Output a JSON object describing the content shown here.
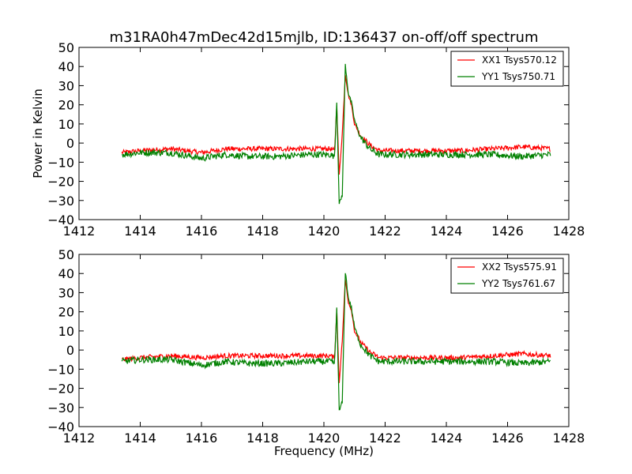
{
  "chart_data": {
    "type": "line",
    "title": "m31RA0h47mDec42d15mjlb, ID:136437 on-off/off spectrum",
    "xlabel": "Frequency (MHz)",
    "ylabel": "Power in Kelvin",
    "xlim": [
      1412,
      1428
    ],
    "ylim": [
      -40,
      50
    ],
    "xticks": [
      1412,
      1414,
      1416,
      1418,
      1420,
      1422,
      1424,
      1426,
      1428
    ],
    "yticks": [
      -40,
      -30,
      -20,
      -10,
      0,
      10,
      20,
      30,
      40,
      50
    ],
    "xtick_labels": [
      "1412",
      "1414",
      "1416",
      "1418",
      "1420",
      "1422",
      "1424",
      "1426",
      "1428"
    ],
    "ytick_labels": [
      "−40",
      "−30",
      "−20",
      "−10",
      "0",
      "10",
      "20",
      "30",
      "40",
      "50"
    ],
    "grid": false,
    "legend_position": "top-right",
    "colors": {
      "red_series": "#ff0000",
      "green_series": "#008000"
    },
    "panels": [
      {
        "series": [
          {
            "name": "XX1 Tsys570.12",
            "color": "#ff0000",
            "x": [
              1413.4,
              1414.0,
              1415.0,
              1416.0,
              1416.8,
              1417.5,
              1418.5,
              1419.5,
              1420.2,
              1420.35,
              1420.42,
              1420.5,
              1420.6,
              1420.7,
              1420.8,
              1420.9,
              1421.0,
              1421.2,
              1421.5,
              1421.8,
              1422.5,
              1423.5,
              1424.5,
              1425.5,
              1426.5,
              1427.4
            ],
            "y": [
              -5,
              -4,
              -3,
              -5,
              -3,
              -3,
              -3,
              -3,
              -3,
              -4,
              20,
              -17,
              5,
              36,
              25,
              20,
              10,
              4,
              -1,
              -4,
              -4,
              -4,
              -4,
              -3,
              -2,
              -3
            ]
          },
          {
            "name": "YY1 Tsys750.71",
            "color": "#008000",
            "x": [
              1413.4,
              1414.0,
              1415.0,
              1416.0,
              1416.8,
              1417.5,
              1418.5,
              1419.5,
              1420.2,
              1420.35,
              1420.42,
              1420.5,
              1420.6,
              1420.7,
              1420.8,
              1420.9,
              1421.0,
              1421.2,
              1421.5,
              1421.8,
              1422.5,
              1423.5,
              1424.5,
              1425.5,
              1426.5,
              1427.4
            ],
            "y": [
              -6,
              -5,
              -5,
              -8,
              -6,
              -7,
              -7,
              -6,
              -6,
              -7,
              22,
              -32,
              -27,
              41,
              26,
              21,
              12,
              3,
              -3,
              -6,
              -6,
              -6,
              -6,
              -6,
              -7,
              -6
            ]
          }
        ]
      },
      {
        "series": [
          {
            "name": "XX2 Tsys575.91",
            "color": "#ff0000",
            "x": [
              1413.4,
              1414.0,
              1415.0,
              1416.0,
              1416.8,
              1417.5,
              1418.5,
              1419.5,
              1420.2,
              1420.35,
              1420.42,
              1420.5,
              1420.6,
              1420.7,
              1420.8,
              1420.9,
              1421.0,
              1421.2,
              1421.5,
              1421.8,
              1422.5,
              1423.5,
              1424.5,
              1425.5,
              1426.5,
              1427.4
            ],
            "y": [
              -5,
              -4,
              -3,
              -4,
              -3,
              -3,
              -3,
              -3,
              -3,
              -4,
              21,
              -17,
              5,
              37,
              25,
              21,
              10,
              4,
              -1,
              -4,
              -4,
              -4,
              -4,
              -3,
              -2,
              -3
            ]
          },
          {
            "name": "YY2 Tsys761.67",
            "color": "#008000",
            "x": [
              1413.4,
              1414.0,
              1415.0,
              1416.0,
              1416.8,
              1417.5,
              1418.5,
              1419.5,
              1420.2,
              1420.35,
              1420.42,
              1420.5,
              1420.6,
              1420.7,
              1420.8,
              1420.9,
              1421.0,
              1421.2,
              1421.5,
              1421.8,
              1422.5,
              1423.5,
              1424.5,
              1425.5,
              1426.5,
              1427.4
            ],
            "y": [
              -6,
              -5,
              -5,
              -8,
              -6,
              -7,
              -7,
              -6,
              -6,
              -7,
              22,
              -32,
              -27,
              41,
              27,
              22,
              12,
              3,
              -3,
              -6,
              -6,
              -6,
              -6,
              -6,
              -7,
              -6
            ]
          }
        ]
      }
    ]
  }
}
